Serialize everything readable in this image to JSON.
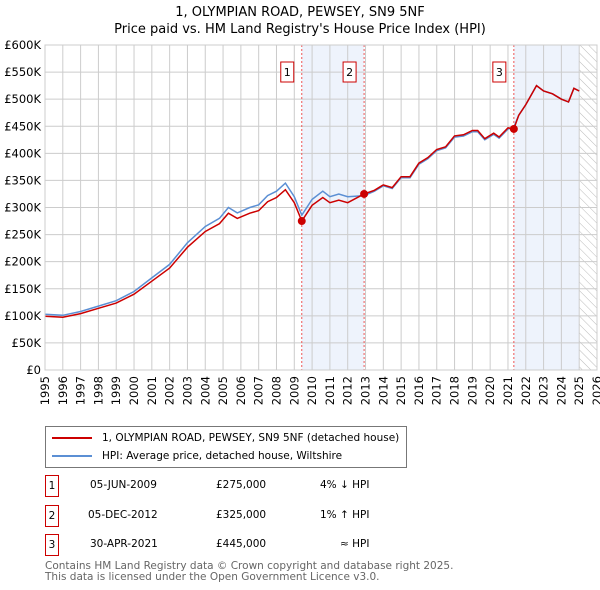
{
  "title": "1, OLYMPIAN ROAD, PEWSEY, SN9 5NF",
  "subtitle": "Price paid vs. HM Land Registry's House Price Index (HPI)",
  "chart_data": {
    "type": "line",
    "xlim": [
      1995,
      2026
    ],
    "ylim": [
      0,
      600000
    ],
    "yticks": [
      "£0",
      "£50K",
      "£100K",
      "£150K",
      "£200K",
      "£250K",
      "£300K",
      "£350K",
      "£400K",
      "£450K",
      "£500K",
      "£550K",
      "£600K"
    ],
    "xticks": [
      "1995",
      "1996",
      "1997",
      "1998",
      "1999",
      "2000",
      "2001",
      "2002",
      "2003",
      "2004",
      "2005",
      "2006",
      "2007",
      "2008",
      "2009",
      "2010",
      "2011",
      "2012",
      "2013",
      "2014",
      "2015",
      "2016",
      "2017",
      "2018",
      "2019",
      "2020",
      "2021",
      "2022",
      "2023",
      "2024",
      "2025",
      "2026"
    ],
    "x": [
      1995,
      1996,
      1997,
      1998,
      1999,
      2000,
      2001,
      2002,
      2003,
      2004,
      2004.8,
      2005.3,
      2005.8,
      2006.5,
      2007,
      2007.5,
      2008,
      2008.5,
      2009,
      2009.42,
      2010,
      2010.6,
      2011,
      2011.5,
      2012,
      2012.92,
      2013.5,
      2014,
      2014.5,
      2015,
      2015.5,
      2016,
      2016.5,
      2017,
      2017.5,
      2018,
      2018.5,
      2019,
      2019.3,
      2019.7,
      2020.2,
      2020.5,
      2021,
      2021.33,
      2021.6,
      2022,
      2022.6,
      2023,
      2023.5,
      2024,
      2024.4,
      2024.7,
      2025
    ],
    "series": [
      {
        "name": "1, OLYMPIAN ROAD, PEWSEY, SN9 5NF (detached house)",
        "color": "#cc0000",
        "values": [
          99.4,
          97.5,
          104.2,
          113.9,
          123.5,
          139.9,
          164,
          188.2,
          226.8,
          255.7,
          270.2,
          289.5,
          279.9,
          289.5,
          294.3,
          310.7,
          318.5,
          332.9,
          308.8,
          275,
          304,
          318.5,
          308.8,
          313.6,
          308.8,
          325,
          331.7,
          341.7,
          336.7,
          356.8,
          356.8,
          381.9,
          392,
          407,
          412,
          432.2,
          434.2,
          442.2,
          442.2,
          427.1,
          437.2,
          430.1,
          447.2,
          445,
          470,
          490,
          525,
          515,
          510,
          500,
          495,
          520,
          515
        ]
      },
      {
        "name": "HPI: Average price, detached house, Wiltshire",
        "color": "#5b8fd4",
        "values": [
          103,
          101,
          108,
          118,
          128,
          145,
          170,
          195,
          235,
          265,
          280,
          300,
          290,
          300,
          305,
          322,
          330,
          345,
          320,
          286,
          315,
          330,
          320,
          325,
          320,
          322,
          330,
          340,
          335,
          355,
          355,
          380,
          390,
          405,
          410,
          430,
          432,
          440,
          440,
          425,
          435,
          428,
          445,
          448,
          470,
          490,
          525,
          515,
          510,
          500,
          495,
          520,
          515
        ]
      }
    ],
    "value_units": "thousands GBP",
    "sales": [
      {
        "label": "1",
        "x": 2009.42,
        "price": 275000,
        "date": "05-JUN-2009",
        "price_text": "£275,000",
        "hpi_text": "4% ↓ HPI"
      },
      {
        "label": "2",
        "x": 2012.92,
        "price": 325000,
        "date": "05-DEC-2012",
        "price_text": "£325,000",
        "hpi_text": "1% ↑ HPI"
      },
      {
        "label": "3",
        "x": 2021.33,
        "price": 445000,
        "date": "30-APR-2021",
        "price_text": "£445,000",
        "hpi_text": "≈ HPI"
      }
    ],
    "shaded_ranges": [
      [
        2009.42,
        2012.92
      ],
      [
        2021.33,
        2025.0
      ]
    ],
    "forecast_hatch_start": 2025.0
  },
  "legend": {
    "red": "1, OLYMPIAN ROAD, PEWSEY, SN9 5NF (detached house)",
    "blue": "HPI: Average price, detached house, Wiltshire"
  },
  "footer": {
    "line1": "Contains HM Land Registry data © Crown copyright and database right 2025.",
    "line2": "This data is licensed under the Open Government Licence v3.0."
  }
}
